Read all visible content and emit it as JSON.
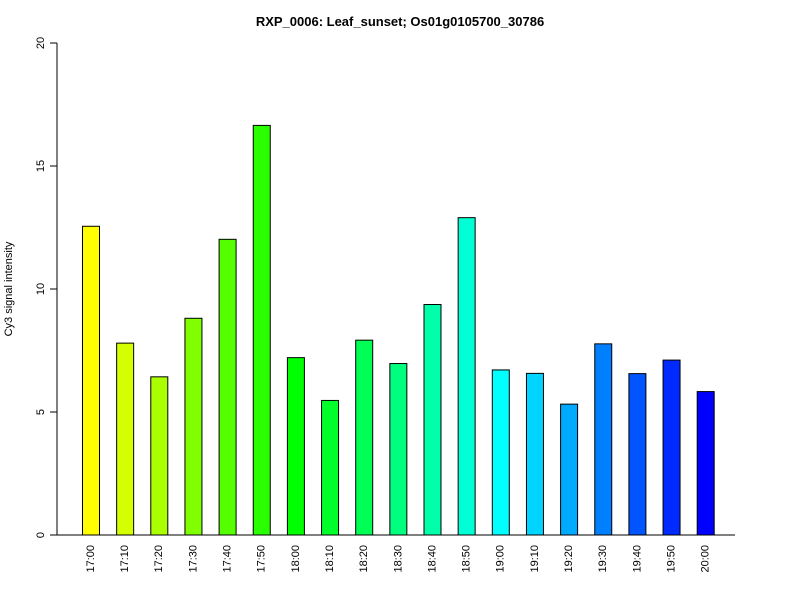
{
  "chart_data": {
    "type": "bar",
    "title": "RXP_0006: Leaf_sunset; Os01g0105700_30786",
    "xlabel": "",
    "ylabel": "Cy3 signal intensity",
    "ylim": [
      0,
      20
    ],
    "yticks": [
      0,
      5,
      10,
      15,
      20
    ],
    "grid": false,
    "categories": [
      "17:00",
      "17:10",
      "17:20",
      "17:30",
      "17:40",
      "17:50",
      "18:00",
      "18:10",
      "18:20",
      "18:30",
      "18:40",
      "18:50",
      "19:00",
      "19:10",
      "19:20",
      "19:30",
      "19:40",
      "19:50",
      "20:00"
    ],
    "values": [
      12.55,
      7.8,
      6.43,
      8.81,
      12.02,
      16.65,
      7.21,
      5.47,
      7.92,
      6.97,
      9.37,
      12.9,
      6.71,
      6.57,
      5.32,
      7.77,
      6.56,
      7.11,
      5.83
    ],
    "colors": [
      "#FFFF00",
      "#D4FF00",
      "#AAFF00",
      "#7FFF00",
      "#55FF00",
      "#2AFF00",
      "#00FF00",
      "#00FF2A",
      "#00FF55",
      "#00FF7F",
      "#00FFAA",
      "#00FFD4",
      "#00FFFF",
      "#00D4FF",
      "#00AAFF",
      "#007FFF",
      "#0055FF",
      "#002AFF",
      "#0000FF"
    ]
  }
}
